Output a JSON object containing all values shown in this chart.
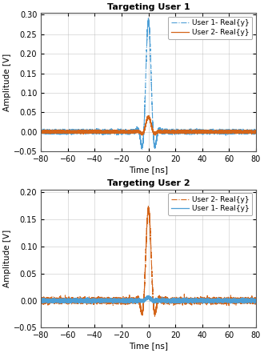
{
  "title1": "Targeting User 1",
  "title2": "Targeting User 2",
  "xlabel": "Time [ns]",
  "ylabel": "Amplitude [V]",
  "xlim": [
    -80,
    80
  ],
  "ylim1": [
    -0.05,
    0.305
  ],
  "ylim2": [
    -0.05,
    0.205
  ],
  "yticks1": [
    -0.05,
    0.0,
    0.05,
    0.1,
    0.15,
    0.2,
    0.25,
    0.3
  ],
  "yticks2": [
    -0.05,
    0.0,
    0.05,
    0.1,
    0.15,
    0.2
  ],
  "xticks": [
    -80,
    -60,
    -40,
    -20,
    0,
    20,
    40,
    60,
    80
  ],
  "color_blue": "#4d9fd6",
  "color_orange": "#d4651a",
  "legend1": [
    "User 1- Real{y}",
    "User 2- Real{y}"
  ],
  "legend2": [
    "User 2- Real{y}",
    "User 1- Real{y}"
  ],
  "figsize": [
    3.3,
    4.41
  ],
  "dpi": 100,
  "background": "#ffffff",
  "grid_color": "#b0b0b0"
}
